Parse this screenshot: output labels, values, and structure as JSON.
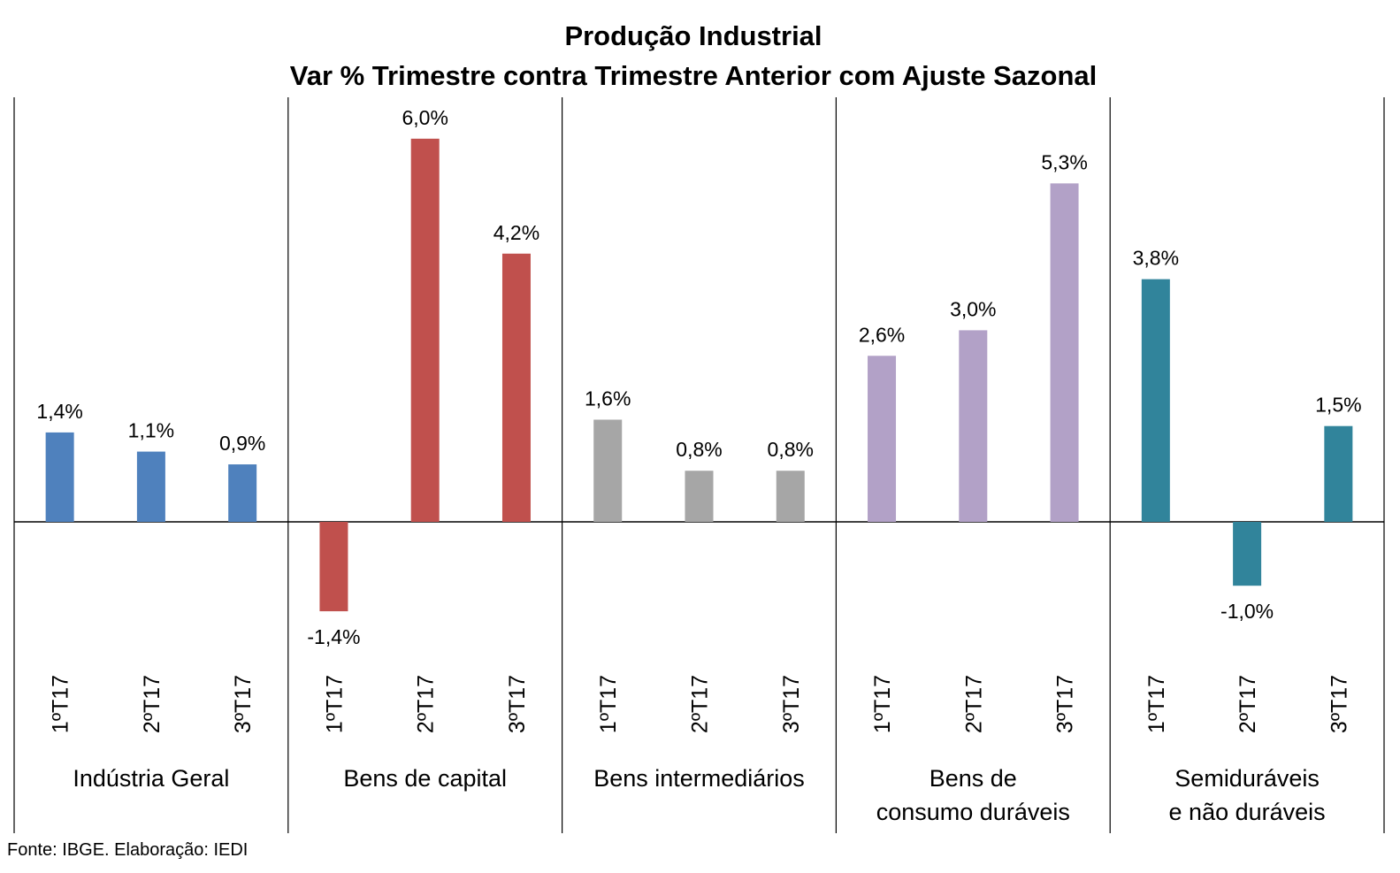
{
  "chart_data": {
    "type": "bar",
    "title_lines": [
      "Produção Industrial",
      "Var % Trimestre contra Trimestre Anterior com Ajuste Sazonal"
    ],
    "categories": [
      "1ºT17",
      "2ºT17",
      "3ºT17"
    ],
    "groups": [
      {
        "name_lines": [
          "Indústria Geral"
        ],
        "color": "#4F81BD",
        "values": [
          1.4,
          1.1,
          0.9
        ],
        "labels": [
          "1,4%",
          "1,1%",
          "0,9%"
        ]
      },
      {
        "name_lines": [
          "Bens de capital"
        ],
        "color": "#C0504D",
        "values": [
          -1.4,
          6.0,
          4.2
        ],
        "labels": [
          "-1,4%",
          "6,0%",
          "4,2%"
        ]
      },
      {
        "name_lines": [
          "Bens intermediários"
        ],
        "color": "#A6A6A6",
        "values": [
          1.6,
          0.8,
          0.8
        ],
        "labels": [
          "1,6%",
          "0,8%",
          "0,8%"
        ]
      },
      {
        "name_lines": [
          "Bens de",
          "consumo duráveis"
        ],
        "color": "#B2A1C7",
        "values": [
          2.6,
          3.0,
          5.3
        ],
        "labels": [
          "2,6%",
          "3,0%",
          "5,3%"
        ]
      },
      {
        "name_lines": [
          "Semiduráveis",
          "e não duráveis"
        ],
        "color": "#31849B",
        "values": [
          3.8,
          -1.0,
          1.5
        ],
        "labels": [
          "3,8%",
          "-1,0%",
          "1,5%"
        ]
      }
    ],
    "ylim": [
      -2.0,
      6.5
    ],
    "grid": false,
    "legend": "none"
  },
  "source": "Fonte: IBGE. Elaboração: IEDI"
}
